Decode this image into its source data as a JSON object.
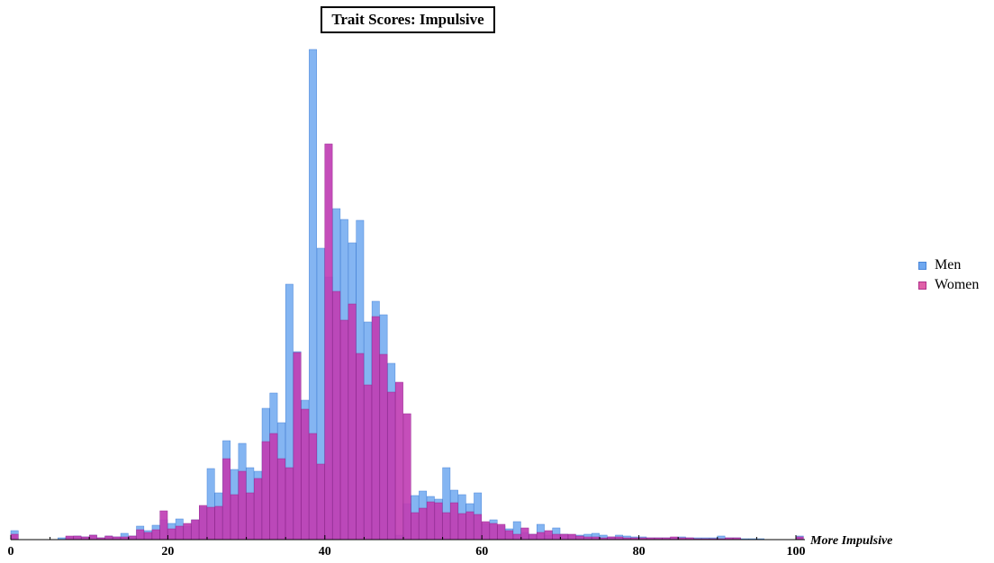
{
  "chart_data": {
    "type": "bar",
    "title": "Trait Scores: Impulsive",
    "xlabel": "More Impulsive",
    "ylabel": "",
    "xlim": [
      0,
      100
    ],
    "bin_width": 1,
    "xticks": [
      0,
      20,
      40,
      60,
      80,
      100
    ],
    "xtick_labels": [
      "0",
      "20",
      "40",
      "60",
      "80",
      "100"
    ],
    "ylim": [
      0,
      545
    ],
    "grid": false,
    "legend_position": "right",
    "colors": {
      "men": "#6fa8f0",
      "women": "#c03fb4",
      "men_swatch": "#6fa8f0",
      "women_swatch": "#e060a8"
    },
    "series": [
      {
        "name": "Men",
        "x": [
          0,
          6,
          7,
          8,
          9,
          10,
          11,
          12,
          13,
          14,
          15,
          16,
          17,
          18,
          19,
          20,
          21,
          22,
          23,
          24,
          25,
          26,
          27,
          28,
          29,
          30,
          31,
          32,
          33,
          34,
          35,
          36,
          37,
          38,
          39,
          40,
          41,
          42,
          43,
          44,
          45,
          46,
          47,
          48,
          49,
          50,
          51,
          52,
          53,
          54,
          55,
          56,
          57,
          58,
          59,
          60,
          61,
          62,
          63,
          64,
          65,
          66,
          67,
          68,
          69,
          70,
          71,
          72,
          73,
          74,
          75,
          76,
          77,
          78,
          79,
          80,
          81,
          82,
          83,
          84,
          85,
          86,
          87,
          88,
          89,
          90,
          91,
          92,
          93,
          94,
          95,
          100
        ],
        "values": [
          10,
          2,
          3,
          4,
          3,
          5,
          2,
          4,
          3,
          7,
          4,
          15,
          10,
          16,
          22,
          18,
          23,
          15,
          22,
          36,
          79,
          52,
          110,
          78,
          107,
          80,
          76,
          146,
          163,
          130,
          284,
          209,
          155,
          545,
          324,
          292,
          368,
          356,
          330,
          355,
          242,
          265,
          250,
          196,
          5,
          40,
          49,
          54,
          48,
          45,
          80,
          55,
          50,
          40,
          52,
          18,
          22,
          15,
          12,
          20,
          8,
          6,
          17,
          5,
          13,
          6,
          5,
          5,
          6,
          7,
          5,
          3,
          5,
          4,
          3,
          3,
          2,
          2,
          2,
          2,
          3,
          2,
          2,
          2,
          2,
          4,
          2,
          2,
          1,
          1,
          1,
          4
        ]
      },
      {
        "name": "Women",
        "x": [
          0,
          7,
          8,
          9,
          10,
          11,
          12,
          13,
          14,
          15,
          16,
          17,
          18,
          19,
          20,
          21,
          22,
          23,
          24,
          25,
          26,
          27,
          28,
          29,
          30,
          31,
          32,
          33,
          34,
          35,
          36,
          37,
          38,
          39,
          40,
          41,
          42,
          43,
          44,
          45,
          46,
          47,
          48,
          49,
          50,
          51,
          52,
          53,
          54,
          55,
          56,
          57,
          58,
          59,
          60,
          61,
          62,
          63,
          64,
          65,
          66,
          67,
          68,
          69,
          70,
          71,
          72,
          73,
          74,
          75,
          76,
          77,
          78,
          79,
          80,
          81,
          82,
          83,
          84,
          85,
          86,
          87,
          88,
          89,
          90,
          91,
          92,
          100
        ],
        "values": [
          6,
          4,
          4,
          3,
          5,
          2,
          4,
          3,
          3,
          4,
          11,
          8,
          11,
          32,
          12,
          15,
          18,
          22,
          38,
          36,
          37,
          90,
          50,
          76,
          52,
          68,
          109,
          118,
          90,
          80,
          208,
          145,
          118,
          84,
          440,
          276,
          244,
          262,
          207,
          172,
          248,
          206,
          164,
          175,
          140,
          30,
          35,
          42,
          41,
          30,
          41,
          29,
          31,
          28,
          20,
          18,
          17,
          10,
          6,
          13,
          6,
          8,
          10,
          6,
          6,
          6,
          4,
          3,
          3,
          2,
          3,
          3,
          2,
          2,
          2,
          2,
          2,
          2,
          3,
          2,
          2,
          1,
          1,
          1,
          1,
          2,
          2,
          3
        ]
      }
    ]
  }
}
